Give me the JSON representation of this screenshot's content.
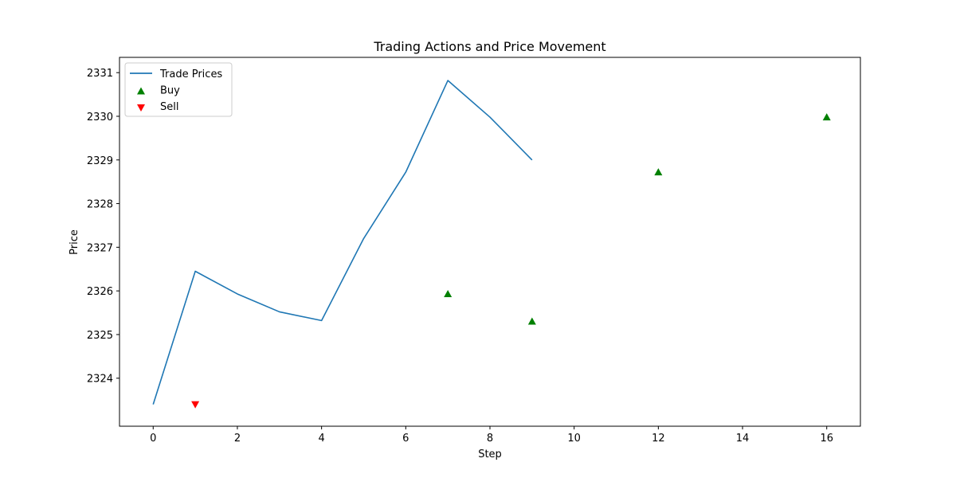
{
  "chart_data": {
    "type": "line",
    "title": "Trading Actions and Price Movement",
    "xlabel": "Step",
    "ylabel": "Price",
    "xlim": [
      -0.8,
      16.8
    ],
    "ylim": [
      2322.9,
      2331.35
    ],
    "xticks": [
      0,
      2,
      4,
      6,
      8,
      10,
      12,
      14,
      16
    ],
    "yticks": [
      2324,
      2325,
      2326,
      2327,
      2328,
      2329,
      2330,
      2331
    ],
    "grid": false,
    "legend_position": "top-left",
    "series": [
      {
        "name": "Trade Prices",
        "kind": "line",
        "color": "#1f77b4",
        "x": [
          0,
          1,
          2,
          3,
          4,
          5,
          6,
          7,
          8,
          9
        ],
        "y": [
          2323.4,
          2326.45,
          2325.93,
          2325.52,
          2325.32,
          2327.2,
          2328.72,
          2330.82,
          2329.98,
          2329.0
        ]
      },
      {
        "name": "Buy",
        "kind": "scatter",
        "marker": "triangle-up",
        "color": "#008000",
        "x": [
          7,
          9,
          12,
          16
        ],
        "y": [
          2325.93,
          2325.3,
          2328.72,
          2329.98
        ]
      },
      {
        "name": "Sell",
        "kind": "scatter",
        "marker": "triangle-down",
        "color": "#ff0000",
        "x": [
          1
        ],
        "y": [
          2323.4
        ]
      }
    ]
  }
}
